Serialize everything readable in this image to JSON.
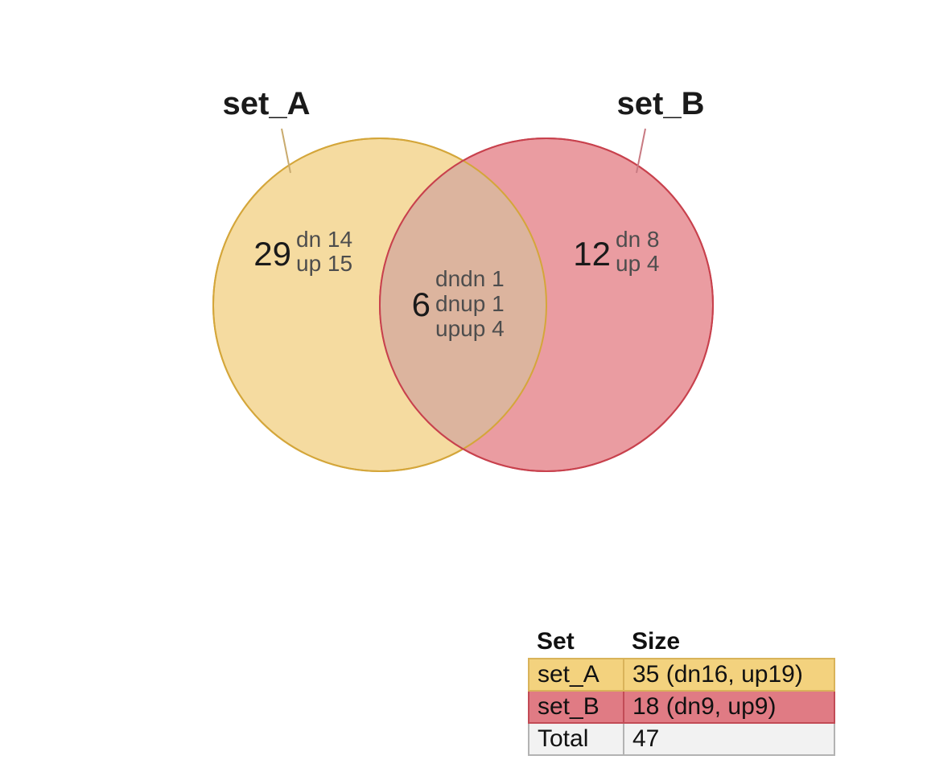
{
  "sets": [
    {
      "name": "set_A",
      "color": "#f0c55e",
      "fill": "#f5dba0",
      "stroke": "#d4a63a",
      "label_line": "#c9ab6e"
    },
    {
      "name": "set_B",
      "color": "#e0707a",
      "fill": "#ea9ca1",
      "stroke": "#c8414d",
      "label_line": "#c87a82"
    }
  ],
  "overlap_color": "#dcb49e",
  "regions": {
    "a_only": {
      "count": "29",
      "lines": [
        "dn 14",
        "up 15"
      ]
    },
    "both": {
      "count": "6",
      "lines": [
        "dndn 1",
        "dnup 1",
        "upup 4"
      ]
    },
    "b_only": {
      "count": "12",
      "lines": [
        "dn 8",
        "up 4"
      ]
    }
  },
  "legend": {
    "header_set": "Set",
    "header_size": "Size",
    "rows": [
      {
        "set": "set_A",
        "size": "35 (dn16, up19)",
        "bg": "#f3d27e",
        "border": "#d9b35a"
      },
      {
        "set": "set_B",
        "size": "18 (dn9, up9)",
        "bg": "#e07b84",
        "border": "#c24b56"
      },
      {
        "set": "Total",
        "size": "47",
        "bg": "#f2f2f2",
        "border": "#b3b3b3"
      }
    ]
  }
}
